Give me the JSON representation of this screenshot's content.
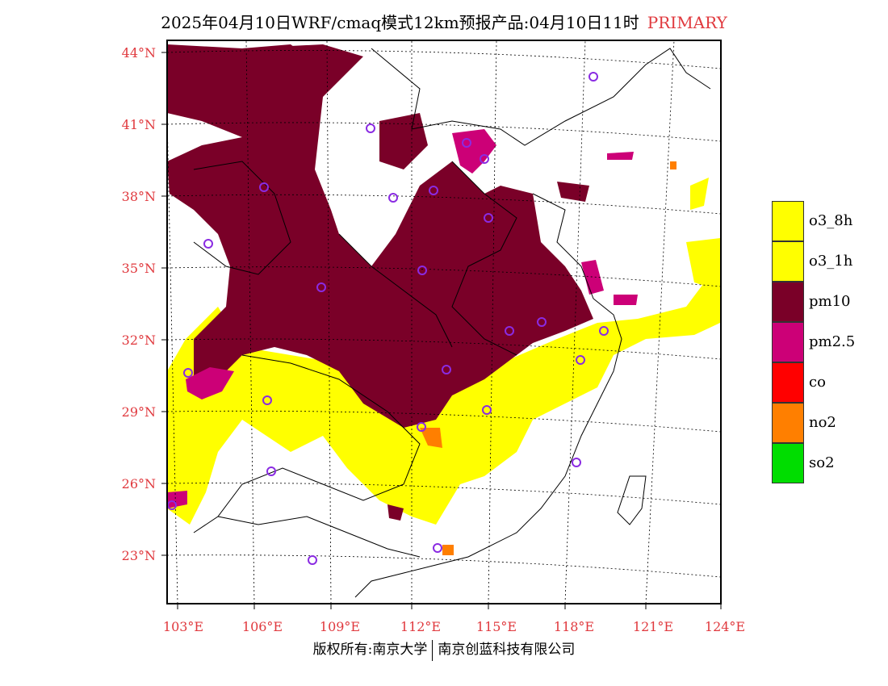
{
  "title": {
    "main": "2025年04月10日WRF/cmaq模式12km预报产品:04月10日11时",
    "tag": "PRIMARY"
  },
  "axes": {
    "lat_labels": [
      "44°N",
      "41°N",
      "38°N",
      "35°N",
      "32°N",
      "29°N",
      "26°N",
      "23°N"
    ],
    "lon_labels": [
      "103°E",
      "106°E",
      "109°E",
      "112°E",
      "115°E",
      "118°E",
      "121°E",
      "124°E"
    ]
  },
  "legend": [
    {
      "label": "o3_8h",
      "color": "#ffff00"
    },
    {
      "label": "o3_1h",
      "color": "#ffff00"
    },
    {
      "label": "pm10",
      "color": "#7a0028"
    },
    {
      "label": "pm2.5",
      "color": "#cc0077"
    },
    {
      "label": "co",
      "color": "#ff0000"
    },
    {
      "label": "no2",
      "color": "#ff7f00"
    },
    {
      "label": "so2",
      "color": "#00dd00"
    }
  ],
  "colors": {
    "pm10": "#7a0028",
    "pm25": "#cc0077",
    "o3": "#ffff00",
    "no2": "#ff7f00",
    "axis": "#e0393e",
    "station": "#8a2be2"
  },
  "footer": {
    "left": "版权所有:南京大学",
    "right": "南京创蓝科技有限公司"
  }
}
